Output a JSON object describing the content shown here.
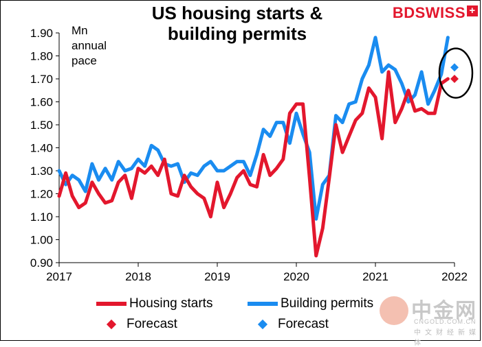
{
  "header": {
    "title_line1": "US housing starts &",
    "title_line2": "building permits",
    "brand": "BDSWISS",
    "brand_mark": "+"
  },
  "unit_label": [
    "Mn",
    "annual",
    "pace"
  ],
  "colors": {
    "housing_starts": "#e3172d",
    "building_permits": "#1a8cf0"
  },
  "chart_data": {
    "type": "line",
    "title": "US housing starts & building permits",
    "ylabel": "Mn annual pace",
    "ylim": [
      0.9,
      1.9
    ],
    "yticks": [
      "0.90",
      "1.00",
      "1.10",
      "1.20",
      "1.30",
      "1.40",
      "1.50",
      "1.60",
      "1.70",
      "1.80",
      "1.90"
    ],
    "xlim": [
      2017,
      2022
    ],
    "xticks": [
      "2017",
      "2018",
      "2019",
      "2020",
      "2021",
      "2022"
    ],
    "x_start": 2017.0,
    "x_step": 0.08333,
    "series": [
      {
        "name": "Housing starts",
        "values": [
          1.19,
          1.29,
          1.19,
          1.14,
          1.16,
          1.25,
          1.2,
          1.16,
          1.17,
          1.25,
          1.28,
          1.18,
          1.31,
          1.29,
          1.32,
          1.28,
          1.35,
          1.2,
          1.19,
          1.28,
          1.23,
          1.2,
          1.18,
          1.1,
          1.25,
          1.14,
          1.2,
          1.27,
          1.3,
          1.24,
          1.23,
          1.37,
          1.28,
          1.31,
          1.35,
          1.55,
          1.59,
          1.59,
          1.27,
          0.93,
          1.05,
          1.27,
          1.5,
          1.38,
          1.45,
          1.52,
          1.55,
          1.66,
          1.62,
          1.44,
          1.73,
          1.51,
          1.57,
          1.65,
          1.56,
          1.57,
          1.55,
          1.55,
          1.68,
          1.7
        ]
      },
      {
        "name": "Building permits",
        "values": [
          1.3,
          1.24,
          1.28,
          1.26,
          1.21,
          1.33,
          1.26,
          1.31,
          1.26,
          1.34,
          1.3,
          1.31,
          1.35,
          1.32,
          1.41,
          1.39,
          1.33,
          1.32,
          1.33,
          1.25,
          1.29,
          1.28,
          1.32,
          1.34,
          1.3,
          1.3,
          1.32,
          1.34,
          1.34,
          1.28,
          1.37,
          1.48,
          1.45,
          1.51,
          1.51,
          1.42,
          1.55,
          1.46,
          1.38,
          1.09,
          1.24,
          1.28,
          1.54,
          1.51,
          1.59,
          1.6,
          1.7,
          1.76,
          1.88,
          1.73,
          1.76,
          1.74,
          1.68,
          1.6,
          1.63,
          1.73,
          1.59,
          1.65,
          1.72,
          1.88
        ]
      }
    ],
    "forecasts": [
      {
        "name": "Forecast",
        "series": "Housing starts",
        "x": 2022.0,
        "value": 1.7
      },
      {
        "name": "Forecast",
        "series": "Building permits",
        "x": 2022.0,
        "value": 1.75
      }
    ],
    "annotation": "circle around forecasts"
  },
  "legend": {
    "housing_starts": "Housing starts",
    "building_permits": "Building permits",
    "forecast_red": "Forecast",
    "forecast_blue": "Forecast"
  },
  "watermark": {
    "main": "中金网",
    "url": "CNGOLD.COM.CN",
    "sub": "中文财经新媒体"
  }
}
